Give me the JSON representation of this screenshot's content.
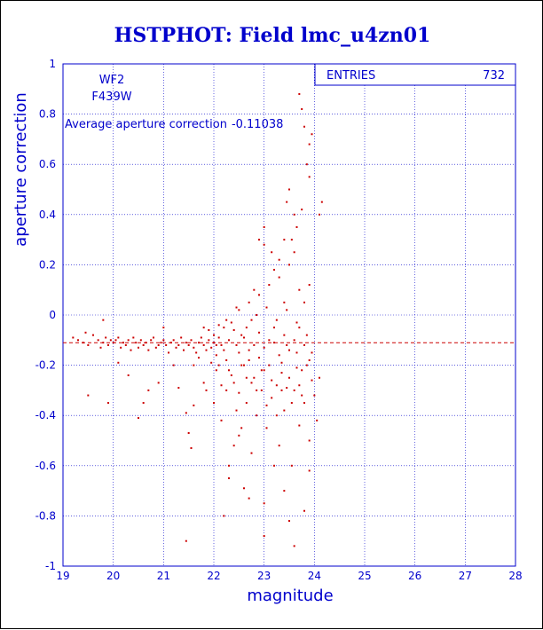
{
  "chart_data": {
    "type": "scatter",
    "title": "HSTPHOT: Field lmc_u4zn01",
    "xlabel": "magnitude",
    "ylabel": "aperture correction",
    "xlim": [
      19,
      28
    ],
    "ylim": [
      -1,
      1
    ],
    "xticks": [
      "19",
      "20",
      "21",
      "22",
      "23",
      "24",
      "25",
      "26",
      "27",
      "28"
    ],
    "yticks": [
      "-1",
      "-0.8",
      "-0.6",
      "-0.4",
      "-0.2",
      "0",
      "0.2",
      "0.4",
      "0.6",
      "0.8",
      "1"
    ],
    "grid": true,
    "chip": "WF2",
    "filter": "F439W",
    "average_label": "Average aperture correction",
    "average_value": -0.11038,
    "average_value_text": "-0.11038",
    "stats_label": "ENTRIES",
    "stats_value": "732",
    "point_color": "#cc0000",
    "axis_color": "#0000cc",
    "points": [
      [
        19.2,
        -0.09
      ],
      [
        19.3,
        -0.1
      ],
      [
        19.4,
        -0.11
      ],
      [
        19.45,
        -0.07
      ],
      [
        19.5,
        -0.12
      ],
      [
        19.6,
        -0.08
      ],
      [
        19.7,
        -0.1
      ],
      [
        19.75,
        -0.13
      ],
      [
        19.8,
        -0.11
      ],
      [
        19.85,
        -0.09
      ],
      [
        19.9,
        -0.12
      ],
      [
        19.95,
        -0.1
      ],
      [
        20.0,
        -0.11
      ],
      [
        20.05,
        -0.1
      ],
      [
        20.1,
        -0.09
      ],
      [
        20.15,
        -0.13
      ],
      [
        20.2,
        -0.11
      ],
      [
        20.25,
        -0.12
      ],
      [
        20.3,
        -0.1
      ],
      [
        20.35,
        -0.14
      ],
      [
        20.4,
        -0.09
      ],
      [
        20.45,
        -0.11
      ],
      [
        20.5,
        -0.13
      ],
      [
        20.55,
        -0.1
      ],
      [
        20.6,
        -0.12
      ],
      [
        20.65,
        -0.11
      ],
      [
        20.7,
        -0.14
      ],
      [
        20.75,
        -0.1
      ],
      [
        20.8,
        -0.09
      ],
      [
        20.85,
        -0.13
      ],
      [
        20.9,
        -0.12
      ],
      [
        20.95,
        -0.11
      ],
      [
        21.0,
        -0.1
      ],
      [
        21.05,
        -0.12
      ],
      [
        21.1,
        -0.15
      ],
      [
        21.15,
        -0.11
      ],
      [
        21.2,
        -0.1
      ],
      [
        21.25,
        -0.13
      ],
      [
        21.3,
        -0.12
      ],
      [
        21.35,
        -0.09
      ],
      [
        21.4,
        -0.14
      ],
      [
        21.45,
        -0.11
      ],
      [
        21.5,
        -0.12
      ],
      [
        21.55,
        -0.1
      ],
      [
        21.6,
        -0.13
      ],
      [
        21.65,
        -0.15
      ],
      [
        21.7,
        -0.11
      ],
      [
        21.75,
        -0.09
      ],
      [
        21.8,
        -0.12
      ],
      [
        21.85,
        -0.14
      ],
      [
        21.9,
        -0.1
      ],
      [
        21.95,
        -0.13
      ],
      [
        22.0,
        -0.11
      ],
      [
        22.05,
        -0.16
      ],
      [
        22.1,
        -0.09
      ],
      [
        22.15,
        -0.12
      ],
      [
        19.9,
        -0.35
      ],
      [
        20.1,
        -0.19
      ],
      [
        20.3,
        -0.24
      ],
      [
        20.5,
        -0.41
      ],
      [
        20.7,
        -0.3
      ],
      [
        20.9,
        -0.27
      ],
      [
        21.0,
        -0.05
      ],
      [
        21.2,
        -0.2
      ],
      [
        21.3,
        -0.29
      ],
      [
        21.45,
        -0.39
      ],
      [
        21.5,
        -0.47
      ],
      [
        21.55,
        -0.53
      ],
      [
        21.6,
        -0.36
      ],
      [
        21.8,
        -0.27
      ],
      [
        21.9,
        -0.06
      ],
      [
        19.8,
        -0.02
      ],
      [
        19.5,
        -0.32
      ],
      [
        20.6,
        -0.35
      ],
      [
        21.45,
        -0.9
      ],
      [
        22.2,
        -0.8
      ],
      [
        22.3,
        -0.6
      ],
      [
        22.4,
        -0.52
      ],
      [
        22.6,
        -0.69
      ],
      [
        22.7,
        -0.73
      ],
      [
        22.2,
        -0.05
      ],
      [
        22.25,
        -0.18
      ],
      [
        22.3,
        -0.22
      ],
      [
        22.35,
        -0.03
      ],
      [
        22.4,
        -0.27
      ],
      [
        22.45,
        -0.12
      ],
      [
        22.5,
        -0.31
      ],
      [
        22.55,
        -0.08
      ],
      [
        22.6,
        -0.2
      ],
      [
        22.65,
        -0.35
      ],
      [
        22.7,
        -0.14
      ],
      [
        22.75,
        -0.02
      ],
      [
        22.8,
        -0.25
      ],
      [
        22.85,
        -0.4
      ],
      [
        22.9,
        -0.17
      ],
      [
        22.95,
        -0.3
      ],
      [
        23.0,
        -0.22
      ],
      [
        23.05,
        -0.45
      ],
      [
        23.1,
        -0.1
      ],
      [
        23.15,
        -0.33
      ],
      [
        23.2,
        -0.05
      ],
      [
        23.25,
        -0.28
      ],
      [
        23.3,
        -0.52
      ],
      [
        23.35,
        -0.19
      ],
      [
        23.4,
        -0.38
      ],
      [
        23.45,
        -0.12
      ],
      [
        23.5,
        -0.25
      ],
      [
        23.55,
        -0.6
      ],
      [
        23.6,
        -0.3
      ],
      [
        23.65,
        -0.15
      ],
      [
        23.7,
        -0.44
      ],
      [
        23.75,
        -0.22
      ],
      [
        23.8,
        -0.35
      ],
      [
        23.85,
        -0.08
      ],
      [
        23.9,
        -0.5
      ],
      [
        22.5,
        0.02
      ],
      [
        22.7,
        0.05
      ],
      [
        22.9,
        0.08
      ],
      [
        23.1,
        0.12
      ],
      [
        23.3,
        0.15
      ],
      [
        23.5,
        0.2
      ],
      [
        23.6,
        0.25
      ],
      [
        23.7,
        0.1
      ],
      [
        23.4,
        0.05
      ],
      [
        23.2,
        0.18
      ],
      [
        23.0,
        0.28
      ],
      [
        22.8,
        0.1
      ],
      [
        23.55,
        0.3
      ],
      [
        23.65,
        0.35
      ],
      [
        23.75,
        0.42
      ],
      [
        23.5,
        0.5
      ],
      [
        23.85,
        0.6
      ],
      [
        23.7,
        0.88
      ],
      [
        23.75,
        0.82
      ],
      [
        23.9,
        0.55
      ],
      [
        23.6,
        0.4
      ],
      [
        23.4,
        0.3
      ],
      [
        23.3,
        0.22
      ],
      [
        23.45,
        0.45
      ],
      [
        23.0,
        0.35
      ],
      [
        22.9,
        0.3
      ],
      [
        23.15,
        0.25
      ],
      [
        23.8,
        0.75
      ],
      [
        23.9,
        0.68
      ],
      [
        23.95,
        0.72
      ],
      [
        24.1,
        0.4
      ],
      [
        24.15,
        0.45
      ],
      [
        22.3,
        -0.65
      ],
      [
        22.5,
        -0.48
      ],
      [
        22.75,
        -0.55
      ],
      [
        23.0,
        -0.75
      ],
      [
        23.2,
        -0.6
      ],
      [
        23.4,
        -0.7
      ],
      [
        23.5,
        -0.82
      ],
      [
        23.6,
        -0.92
      ],
      [
        23.8,
        -0.78
      ],
      [
        23.9,
        -0.62
      ],
      [
        24.1,
        -0.25
      ],
      [
        24.05,
        -0.42
      ],
      [
        23.0,
        -0.88
      ],
      [
        22.0,
        -0.35
      ],
      [
        22.15,
        -0.42
      ],
      [
        22.1,
        -0.2
      ],
      [
        22.25,
        -0.3
      ],
      [
        22.45,
        -0.38
      ],
      [
        22.55,
        -0.45
      ],
      [
        22.65,
        -0.25
      ],
      [
        22.85,
        -0.3
      ],
      [
        23.05,
        -0.36
      ],
      [
        23.25,
        -0.4
      ],
      [
        23.35,
        -0.3
      ],
      [
        23.55,
        -0.35
      ],
      [
        23.7,
        -0.28
      ],
      [
        23.85,
        -0.2
      ],
      [
        23.95,
        -0.15
      ],
      [
        24.0,
        -0.32
      ],
      [
        22.0,
        -0.08
      ],
      [
        22.1,
        -0.04
      ],
      [
        22.2,
        -0.14
      ],
      [
        22.3,
        -0.1
      ],
      [
        22.4,
        -0.06
      ],
      [
        22.5,
        -0.15
      ],
      [
        22.6,
        -0.09
      ],
      [
        22.7,
        -0.18
      ],
      [
        22.8,
        -0.12
      ],
      [
        22.9,
        -0.07
      ],
      [
        23.0,
        -0.13
      ],
      [
        23.1,
        -0.2
      ],
      [
        23.2,
        -0.11
      ],
      [
        23.3,
        -0.16
      ],
      [
        23.4,
        -0.08
      ],
      [
        23.5,
        -0.14
      ],
      [
        23.6,
        -0.1
      ],
      [
        23.7,
        -0.05
      ],
      [
        23.8,
        -0.12
      ],
      [
        23.9,
        -0.18
      ],
      [
        22.05,
        -0.22
      ],
      [
        22.15,
        -0.28
      ],
      [
        22.35,
        -0.24
      ],
      [
        22.55,
        -0.2
      ],
      [
        22.75,
        -0.27
      ],
      [
        22.95,
        -0.22
      ],
      [
        23.15,
        -0.26
      ],
      [
        23.35,
        -0.23
      ],
      [
        23.45,
        -0.29
      ],
      [
        23.65,
        -0.21
      ],
      [
        23.75,
        -0.32
      ],
      [
        23.95,
        -0.26
      ],
      [
        21.6,
        -0.2
      ],
      [
        21.7,
        -0.17
      ],
      [
        21.8,
        -0.05
      ],
      [
        21.95,
        -0.19
      ],
      [
        21.85,
        -0.3
      ],
      [
        22.05,
        -0.12
      ],
      [
        22.25,
        -0.02
      ],
      [
        22.45,
        0.03
      ],
      [
        22.65,
        -0.05
      ],
      [
        22.85,
        0.0
      ],
      [
        23.05,
        0.03
      ],
      [
        23.25,
        -0.02
      ],
      [
        23.45,
        0.02
      ],
      [
        23.65,
        -0.03
      ],
      [
        23.8,
        0.05
      ],
      [
        23.9,
        0.12
      ]
    ]
  }
}
